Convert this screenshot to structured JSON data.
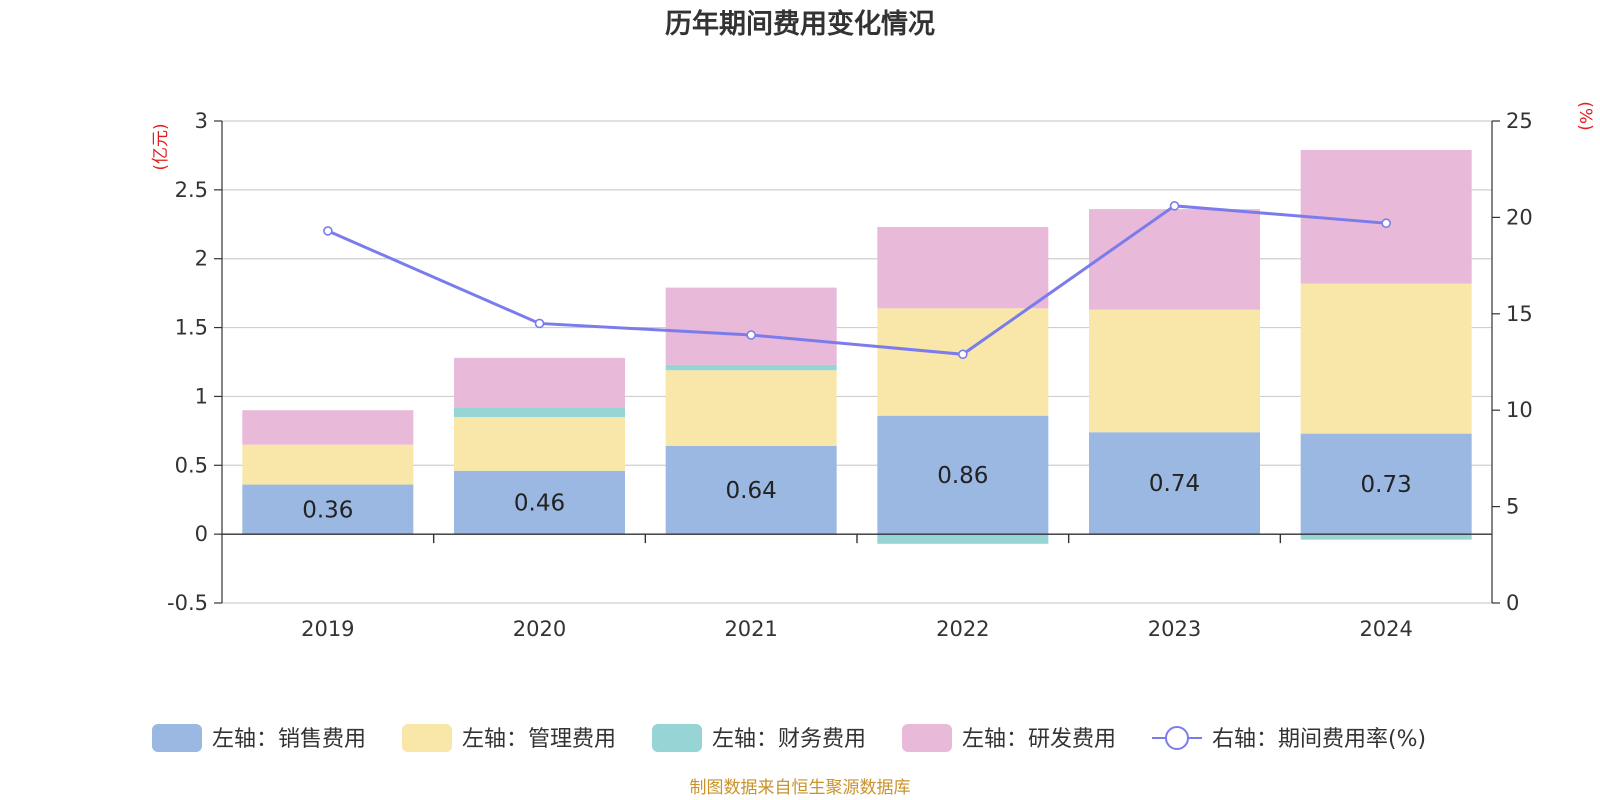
{
  "chart_data": {
    "type": "bar",
    "title": "历年期间费用变化情况",
    "categories": [
      "2019",
      "2020",
      "2021",
      "2022",
      "2023",
      "2024"
    ],
    "left_axis": {
      "unit": "(亿元)",
      "ylim": [
        -0.5,
        3
      ],
      "ticks": [
        "-0.5",
        "0",
        "0.5",
        "1",
        "1.5",
        "2",
        "2.5",
        "3"
      ]
    },
    "right_axis": {
      "unit": "(%)",
      "ylim": [
        0,
        25
      ],
      "ticks": [
        "0",
        "5",
        "10",
        "15",
        "20",
        "25"
      ]
    },
    "series": [
      {
        "name": "左轴：销售费用",
        "type": "bar",
        "axis": "left",
        "color": "#9bb8e2",
        "values": [
          0.36,
          0.46,
          0.64,
          0.86,
          0.74,
          0.73
        ]
      },
      {
        "name": "左轴：管理费用",
        "type": "bar",
        "axis": "left",
        "color": "#f8e7a9",
        "values": [
          0.29,
          0.39,
          0.55,
          0.78,
          0.89,
          1.09
        ]
      },
      {
        "name": "左轴：财务费用",
        "type": "bar",
        "axis": "left",
        "color": "#97d4d5",
        "values": [
          0.0,
          0.07,
          0.04,
          -0.07,
          0.0,
          -0.04
        ]
      },
      {
        "name": "左轴：研发费用",
        "type": "bar",
        "axis": "left",
        "color": "#e8b9d9",
        "values": [
          0.25,
          0.36,
          0.56,
          0.59,
          0.73,
          0.97
        ]
      },
      {
        "name": "右轴：期间费用率(%)",
        "type": "line",
        "axis": "right",
        "color": "#7b7cec",
        "values": [
          19.3,
          14.5,
          13.9,
          12.9,
          20.6,
          19.7
        ]
      }
    ],
    "data_labels": [
      "0.36",
      "0.46",
      "0.64",
      "0.86",
      "0.74",
      "0.73"
    ],
    "grid": true,
    "legend": "bottom"
  },
  "source_note": "制图数据来自恒生聚源数据库"
}
